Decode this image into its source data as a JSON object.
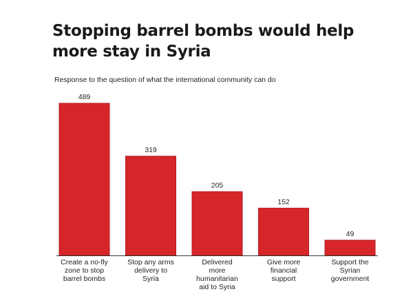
{
  "title": "Stopping barrel bombs would help more stay in Syria",
  "subtitle": "Response to the question of what the international community can do",
  "colors": {
    "bar": "#d7262a",
    "bar_edge": "#b31d20",
    "baseline": "#333333",
    "text": "#222222"
  },
  "chart_data": {
    "type": "bar",
    "title": "Stopping barrel bombs would help more stay in Syria",
    "subtitle": "Response to the question of what the international community can do",
    "xlabel": "",
    "ylabel": "",
    "grid": false,
    "legend": "none",
    "categories": [
      [
        "Create a no-fly",
        "zone to stop",
        "barrel bombs"
      ],
      [
        "Stop any arms",
        "delivery to",
        "Syria"
      ],
      [
        "Delivered",
        "more",
        "humanitarian",
        "aid to Syria"
      ],
      [
        "Give more",
        "financial",
        "support"
      ],
      [
        "Support the",
        "Syrian",
        "government"
      ]
    ],
    "values": [
      489,
      319,
      205,
      152,
      49
    ],
    "value_labels": [
      "489",
      "319",
      "205",
      "152",
      "49"
    ],
    "ylim": [
      0,
      489
    ]
  }
}
